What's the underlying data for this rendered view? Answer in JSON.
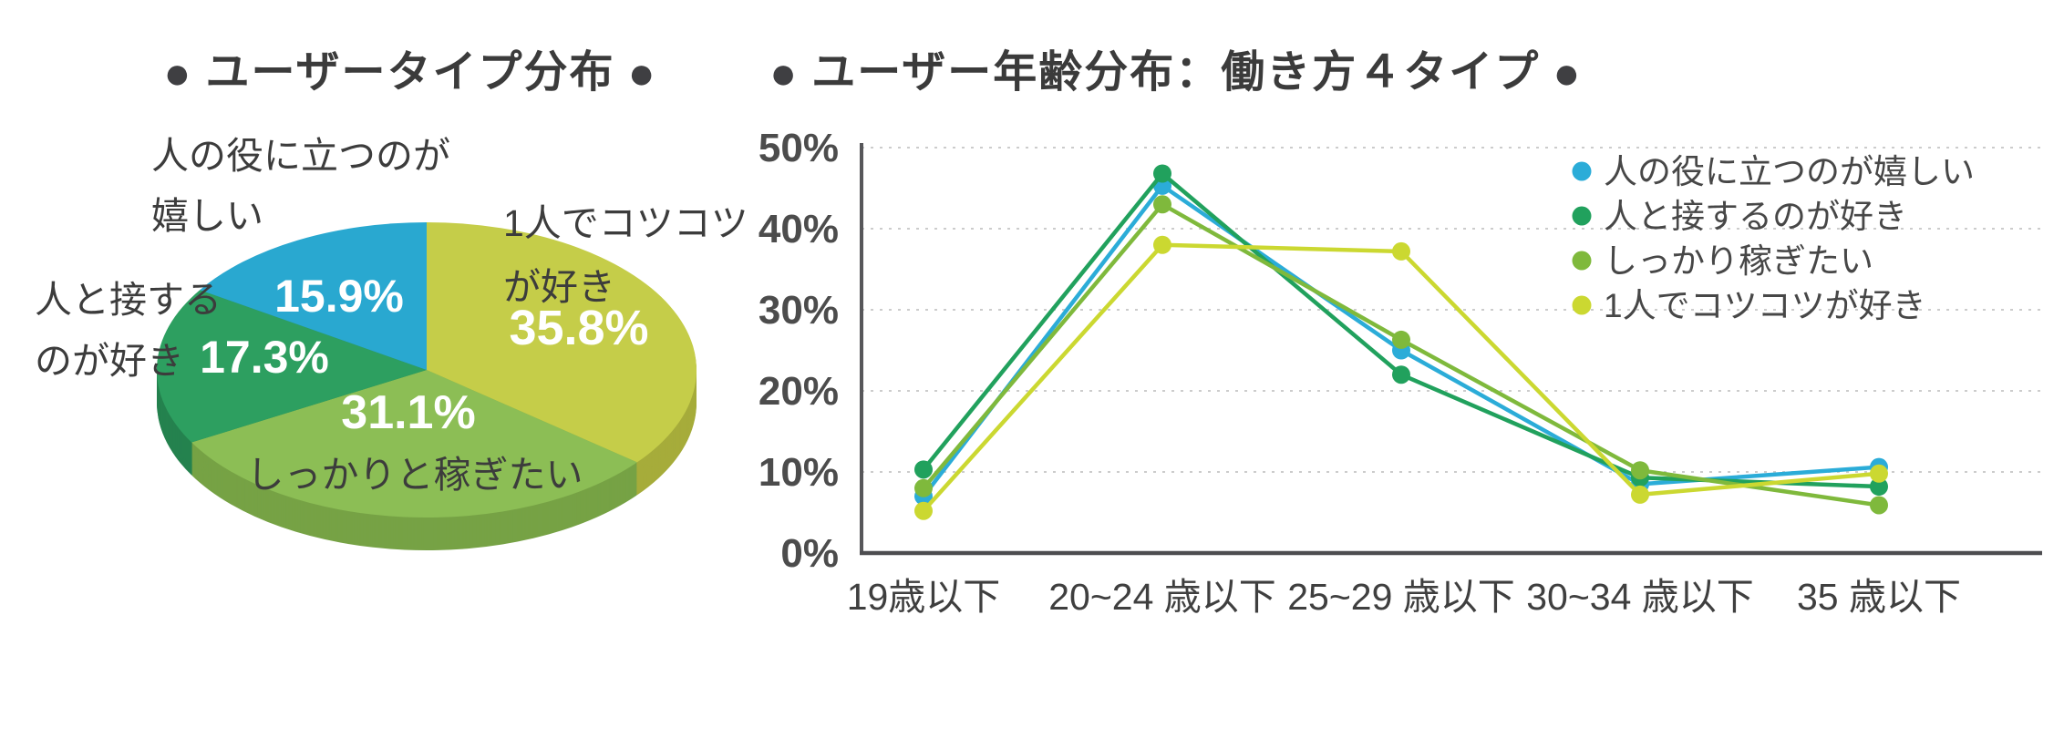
{
  "titles": {
    "bullet": "●",
    "pie": "ユーザータイプ分布",
    "line": "ユーザー年齢分布：働き方４タイプ"
  },
  "chart_data": [
    {
      "type": "pie",
      "title": "ユーザータイプ分布",
      "style": "3d-pie, starts at 12 o'clock, clockwise",
      "slices": [
        {
          "label": "1人でコツコツが好き",
          "label_lines": [
            "1人でコツコツ",
            "が好き"
          ],
          "value": 35.8,
          "pct": "35.8%",
          "color": "#c5cd49",
          "side_color": "#a6ac3b"
        },
        {
          "label": "しっかりと稼ぎたい",
          "label_lines": [
            "しっかりと稼ぎたい"
          ],
          "value": 31.1,
          "pct": "31.1%",
          "color": "#8cbe55",
          "side_color": "#76a245"
        },
        {
          "label": "人と接するのが好き",
          "label_lines": [
            "人と接する",
            "のが好き"
          ],
          "value": 17.3,
          "pct": "17.3%",
          "color": "#2d9f60",
          "side_color": "#25824f"
        },
        {
          "label": "人の役に立つのが嬉しい",
          "label_lines": [
            "人の役に立つのが",
            "嬉しい"
          ],
          "value": 15.9,
          "pct": "15.9%",
          "color": "#29a8d0",
          "side_color": "#2287a8"
        }
      ]
    },
    {
      "type": "line",
      "title": "ユーザー年齢分布：働き方４タイプ",
      "categories": [
        "19歳以下",
        "20~24 歳以下",
        "25~29 歳以下",
        "30~34 歳以下",
        "35 歳以下"
      ],
      "y_ticks": [
        "0%",
        "10%",
        "20%",
        "30%",
        "40%",
        "50%"
      ],
      "ylim": [
        0,
        50
      ],
      "grid": "dotted horizontal lines every 10%",
      "legend_position": "top-right",
      "series": [
        {
          "name": "人の役に立つのが嬉しい",
          "color": "#2bacd8",
          "values": [
            7.0,
            45.3,
            25.0,
            8.5,
            10.6
          ]
        },
        {
          "name": "人と接するのが好き",
          "color": "#21a15d",
          "values": [
            10.3,
            46.8,
            22.0,
            9.3,
            8.2
          ]
        },
        {
          "name": "しっかり稼ぎたい",
          "color": "#7fb93c",
          "values": [
            8.0,
            43.0,
            26.3,
            10.2,
            5.9
          ]
        },
        {
          "name": "1人でコツコツが好き",
          "color": "#cbd831",
          "values": [
            5.2,
            38.0,
            37.2,
            7.2,
            9.8
          ]
        }
      ]
    }
  ]
}
